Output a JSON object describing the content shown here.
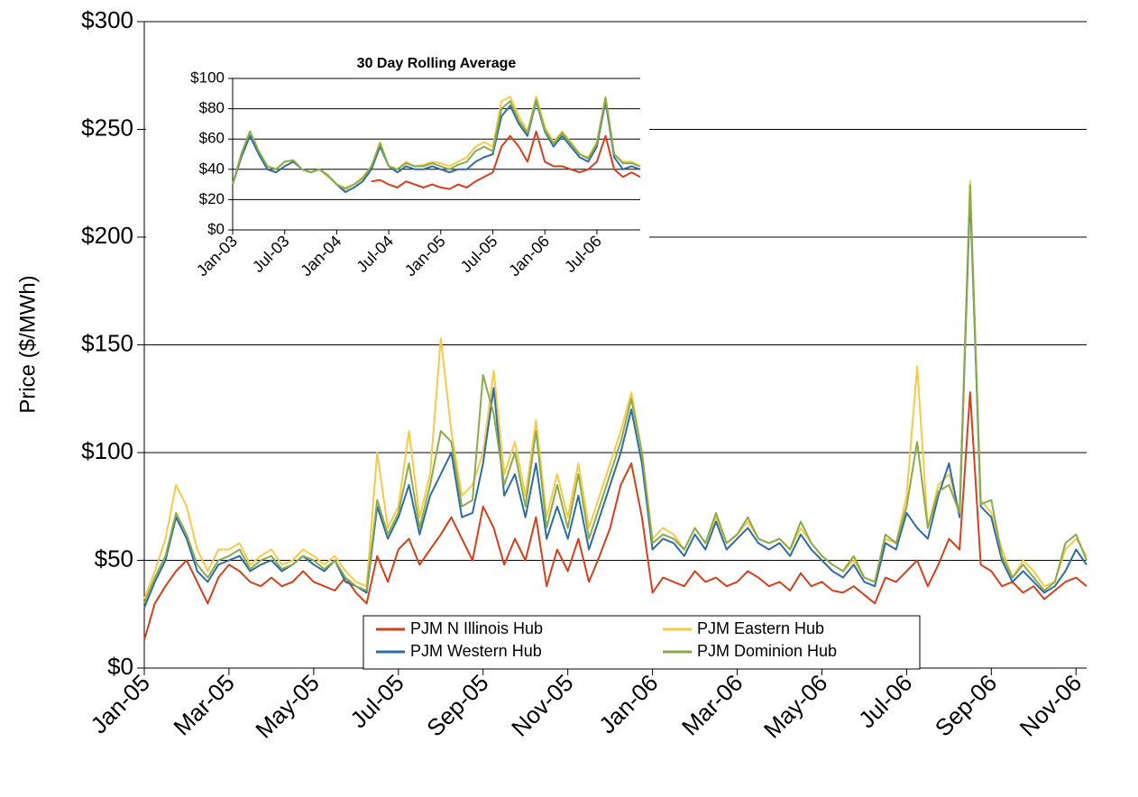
{
  "chart_data": [
    {
      "type": "line",
      "ylabel": "Price ($/MWh)",
      "x": [
        "Jan-05",
        null,
        null,
        null,
        null,
        null,
        null,
        null,
        "Mar-05",
        null,
        null,
        null,
        null,
        null,
        null,
        null,
        "May-05",
        null,
        null,
        null,
        null,
        null,
        null,
        null,
        "Jul-05",
        null,
        null,
        null,
        null,
        null,
        null,
        null,
        "Sep-05",
        null,
        null,
        null,
        null,
        null,
        null,
        null,
        "Nov-05",
        null,
        null,
        null,
        null,
        null,
        null,
        null,
        "Jan-06",
        null,
        null,
        null,
        null,
        null,
        null,
        null,
        "Mar-06",
        null,
        null,
        null,
        null,
        null,
        null,
        null,
        "May-06",
        null,
        null,
        null,
        null,
        null,
        null,
        null,
        "Jul-06",
        null,
        null,
        null,
        null,
        null,
        null,
        null,
        "Sep-06",
        null,
        null,
        null,
        null,
        null,
        null,
        null,
        "Nov-06",
        null
      ],
      "series": [
        {
          "name": "PJM N Illinois Hub",
          "color": "#d4401c",
          "values": [
            13,
            30,
            38,
            45,
            50,
            40,
            30,
            42,
            48,
            45,
            40,
            38,
            42,
            38,
            40,
            45,
            40,
            38,
            36,
            42,
            35,
            30,
            52,
            40,
            55,
            60,
            48,
            55,
            62,
            70,
            60,
            50,
            75,
            65,
            48,
            60,
            50,
            70,
            38,
            55,
            45,
            60,
            40,
            52,
            65,
            85,
            95,
            70,
            35,
            42,
            40,
            38,
            45,
            40,
            42,
            38,
            40,
            45,
            42,
            38,
            40,
            36,
            44,
            38,
            40,
            36,
            35,
            38,
            34,
            30,
            42,
            40,
            45,
            50,
            38,
            48,
            60,
            55,
            128,
            48,
            45,
            38,
            40,
            35,
            38,
            32,
            36,
            40,
            42,
            38
          ]
        },
        {
          "name": "PJM Eastern Hub",
          "color": "#f7c948",
          "values": [
            32,
            45,
            60,
            85,
            75,
            55,
            45,
            55,
            55,
            58,
            48,
            52,
            55,
            48,
            50,
            55,
            52,
            48,
            52,
            45,
            40,
            38,
            100,
            65,
            75,
            110,
            70,
            90,
            153,
            110,
            80,
            85,
            100,
            138,
            90,
            105,
            80,
            115,
            70,
            90,
            70,
            95,
            65,
            80,
            95,
            110,
            128,
            100,
            60,
            65,
            62,
            55,
            65,
            58,
            70,
            58,
            62,
            68,
            60,
            58,
            60,
            55,
            65,
            58,
            52,
            48,
            45,
            50,
            42,
            40,
            60,
            58,
            80,
            140,
            65,
            85,
            90,
            72,
            226,
            78,
            72,
            55,
            42,
            50,
            45,
            38,
            40,
            55,
            60,
            52
          ]
        },
        {
          "name": "PJM Western Hub",
          "color": "#2e6ca4",
          "values": [
            28,
            40,
            50,
            70,
            60,
            45,
            40,
            48,
            50,
            52,
            45,
            48,
            50,
            45,
            48,
            52,
            48,
            45,
            50,
            40,
            38,
            35,
            75,
            60,
            70,
            85,
            62,
            80,
            90,
            100,
            70,
            72,
            95,
            130,
            80,
            90,
            70,
            95,
            60,
            75,
            60,
            80,
            55,
            70,
            85,
            100,
            120,
            95,
            55,
            60,
            58,
            52,
            62,
            55,
            68,
            55,
            60,
            65,
            58,
            55,
            58,
            52,
            62,
            55,
            50,
            45,
            42,
            48,
            40,
            38,
            58,
            55,
            72,
            65,
            60,
            80,
            95,
            70,
            220,
            75,
            70,
            50,
            40,
            45,
            40,
            35,
            38,
            45,
            55,
            48
          ]
        },
        {
          "name": "PJM Dominion Hub",
          "color": "#8aab4a",
          "values": [
            30,
            42,
            52,
            72,
            62,
            48,
            42,
            50,
            52,
            55,
            46,
            50,
            52,
            46,
            48,
            52,
            50,
            46,
            50,
            42,
            38,
            36,
            78,
            62,
            72,
            95,
            65,
            85,
            110,
            105,
            75,
            78,
            136,
            118,
            85,
            100,
            75,
            110,
            65,
            85,
            65,
            90,
            60,
            75,
            90,
            105,
            125,
            100,
            58,
            62,
            60,
            55,
            65,
            58,
            72,
            58,
            62,
            70,
            60,
            58,
            60,
            55,
            68,
            58,
            52,
            48,
            45,
            52,
            42,
            40,
            62,
            58,
            75,
            105,
            65,
            82,
            85,
            72,
            224,
            76,
            78,
            52,
            42,
            48,
            42,
            36,
            40,
            58,
            62,
            50
          ]
        }
      ],
      "ylim": [
        0,
        300
      ],
      "yticks": [
        {
          "value": 0,
          "label": "$0"
        },
        {
          "value": 50,
          "label": "$50"
        },
        {
          "value": 100,
          "label": "$100"
        },
        {
          "value": 150,
          "label": "$150"
        },
        {
          "value": 200,
          "label": "$200"
        },
        {
          "value": 250,
          "label": "$250"
        },
        {
          "value": 300,
          "label": "$300"
        }
      ],
      "grid": true,
      "legend": "bottom"
    },
    {
      "type": "line",
      "title": "30 Day Rolling Average",
      "x": [
        "Jan-03",
        null,
        null,
        null,
        null,
        null,
        "Jul-03",
        null,
        null,
        null,
        null,
        null,
        "Jan-04",
        null,
        null,
        null,
        null,
        null,
        "Jul-04",
        null,
        null,
        null,
        null,
        null,
        "Jan-05",
        null,
        null,
        null,
        null,
        null,
        "Jul-05",
        null,
        null,
        null,
        null,
        null,
        "Jan-06",
        null,
        null,
        null,
        null,
        null,
        "Jul-06",
        null,
        null,
        null,
        null,
        null
      ],
      "series": [
        {
          "name": "PJM N Illinois Hub",
          "color": "#d4401c",
          "values": [
            null,
            null,
            null,
            null,
            null,
            null,
            null,
            null,
            null,
            null,
            null,
            null,
            null,
            null,
            null,
            null,
            32,
            33,
            30,
            28,
            32,
            30,
            28,
            30,
            28,
            27,
            30,
            28,
            32,
            35,
            38,
            55,
            62,
            55,
            45,
            65,
            45,
            42,
            42,
            40,
            38,
            40,
            45,
            62,
            40,
            35,
            38,
            35
          ]
        },
        {
          "name": "PJM Eastern Hub",
          "color": "#f7c948",
          "values": [
            30,
            50,
            65,
            52,
            42,
            40,
            45,
            46,
            40,
            38,
            40,
            35,
            30,
            28,
            30,
            35,
            42,
            58,
            42,
            40,
            45,
            42,
            43,
            45,
            44,
            42,
            45,
            48,
            55,
            58,
            55,
            85,
            88,
            75,
            65,
            88,
            68,
            58,
            65,
            58,
            50,
            48,
            58,
            88,
            50,
            45,
            45,
            42
          ]
        },
        {
          "name": "PJM Western Hub",
          "color": "#2e6ca4",
          "values": [
            30,
            48,
            62,
            50,
            40,
            38,
            42,
            45,
            40,
            38,
            40,
            36,
            30,
            25,
            28,
            32,
            40,
            55,
            42,
            38,
            42,
            40,
            40,
            42,
            40,
            38,
            40,
            40,
            45,
            48,
            50,
            75,
            82,
            70,
            62,
            85,
            65,
            55,
            62,
            55,
            48,
            45,
            55,
            85,
            48,
            40,
            42,
            40
          ]
        },
        {
          "name": "PJM Dominion Hub",
          "color": "#8aab4a",
          "values": [
            30,
            50,
            65,
            52,
            42,
            40,
            45,
            46,
            40,
            38,
            40,
            36,
            30,
            27,
            30,
            34,
            42,
            57,
            42,
            40,
            44,
            42,
            42,
            44,
            42,
            40,
            43,
            45,
            52,
            55,
            52,
            80,
            85,
            72,
            64,
            86,
            66,
            57,
            64,
            57,
            50,
            47,
            57,
            87,
            50,
            44,
            44,
            42
          ]
        }
      ],
      "ylim": [
        0,
        100
      ],
      "yticks": [
        {
          "value": 0,
          "label": "$0"
        },
        {
          "value": 20,
          "label": "$20"
        },
        {
          "value": 40,
          "label": "$40"
        },
        {
          "value": 60,
          "label": "$60"
        },
        {
          "value": 80,
          "label": "$80"
        },
        {
          "value": 100,
          "label": "$100"
        }
      ],
      "grid": true
    }
  ]
}
